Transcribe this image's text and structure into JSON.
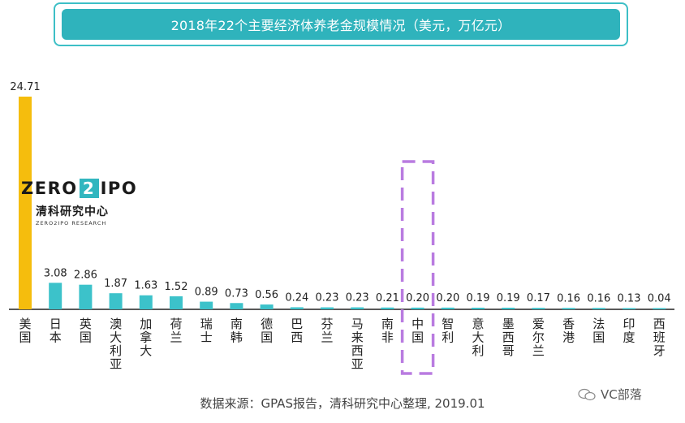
{
  "title": "2018年22个主要经济体养老金规模情况（美元，万亿元）",
  "source": "数据来源：GPAS报告，清科研究中心整理, 2019.01",
  "logo": {
    "main_left": "ZERO",
    "main_mid": "2",
    "main_right": "IPO",
    "cn": "清科研究中心",
    "en": "ZERO2IPO RESEARCH"
  },
  "watermark": "VC部落",
  "colors": {
    "highlight": "#f5bd0d",
    "bar": "#3cc2ca",
    "frame": "#3dbfc6",
    "dash": "#b97be0"
  },
  "chart_data": {
    "type": "bar",
    "title": "2018年22个主要经济体养老金规模情况（美元，万亿元）",
    "categories": [
      "美国",
      "日本",
      "英国",
      "澳大利亚",
      "加拿大",
      "荷兰",
      "瑞士",
      "南韩",
      "德国",
      "巴西",
      "芬兰",
      "马来西亚",
      "南非",
      "中国",
      "智利",
      "意大利",
      "墨西哥",
      "爱尔兰",
      "香港",
      "法国",
      "印度",
      "西班牙"
    ],
    "values": [
      24.71,
      3.08,
      2.86,
      1.87,
      1.63,
      1.52,
      0.89,
      0.73,
      0.56,
      0.24,
      0.23,
      0.23,
      0.21,
      0.2,
      0.2,
      0.19,
      0.19,
      0.17,
      0.16,
      0.16,
      0.13,
      0.04
    ],
    "value_labels": [
      "24.71",
      "3.08",
      "2.86",
      "1.87",
      "1.63",
      "1.52",
      "0.89",
      "0.73",
      "0.56",
      "0.24",
      "0.23",
      "0.23",
      "0.21",
      "0.20",
      "0.20",
      "0.19",
      "0.19",
      "0.17",
      "0.16",
      "0.16",
      "0.13",
      "0.04"
    ],
    "highlight_category": "美国",
    "boxed_category": "中国",
    "grid": false,
    "legend": "none"
  }
}
